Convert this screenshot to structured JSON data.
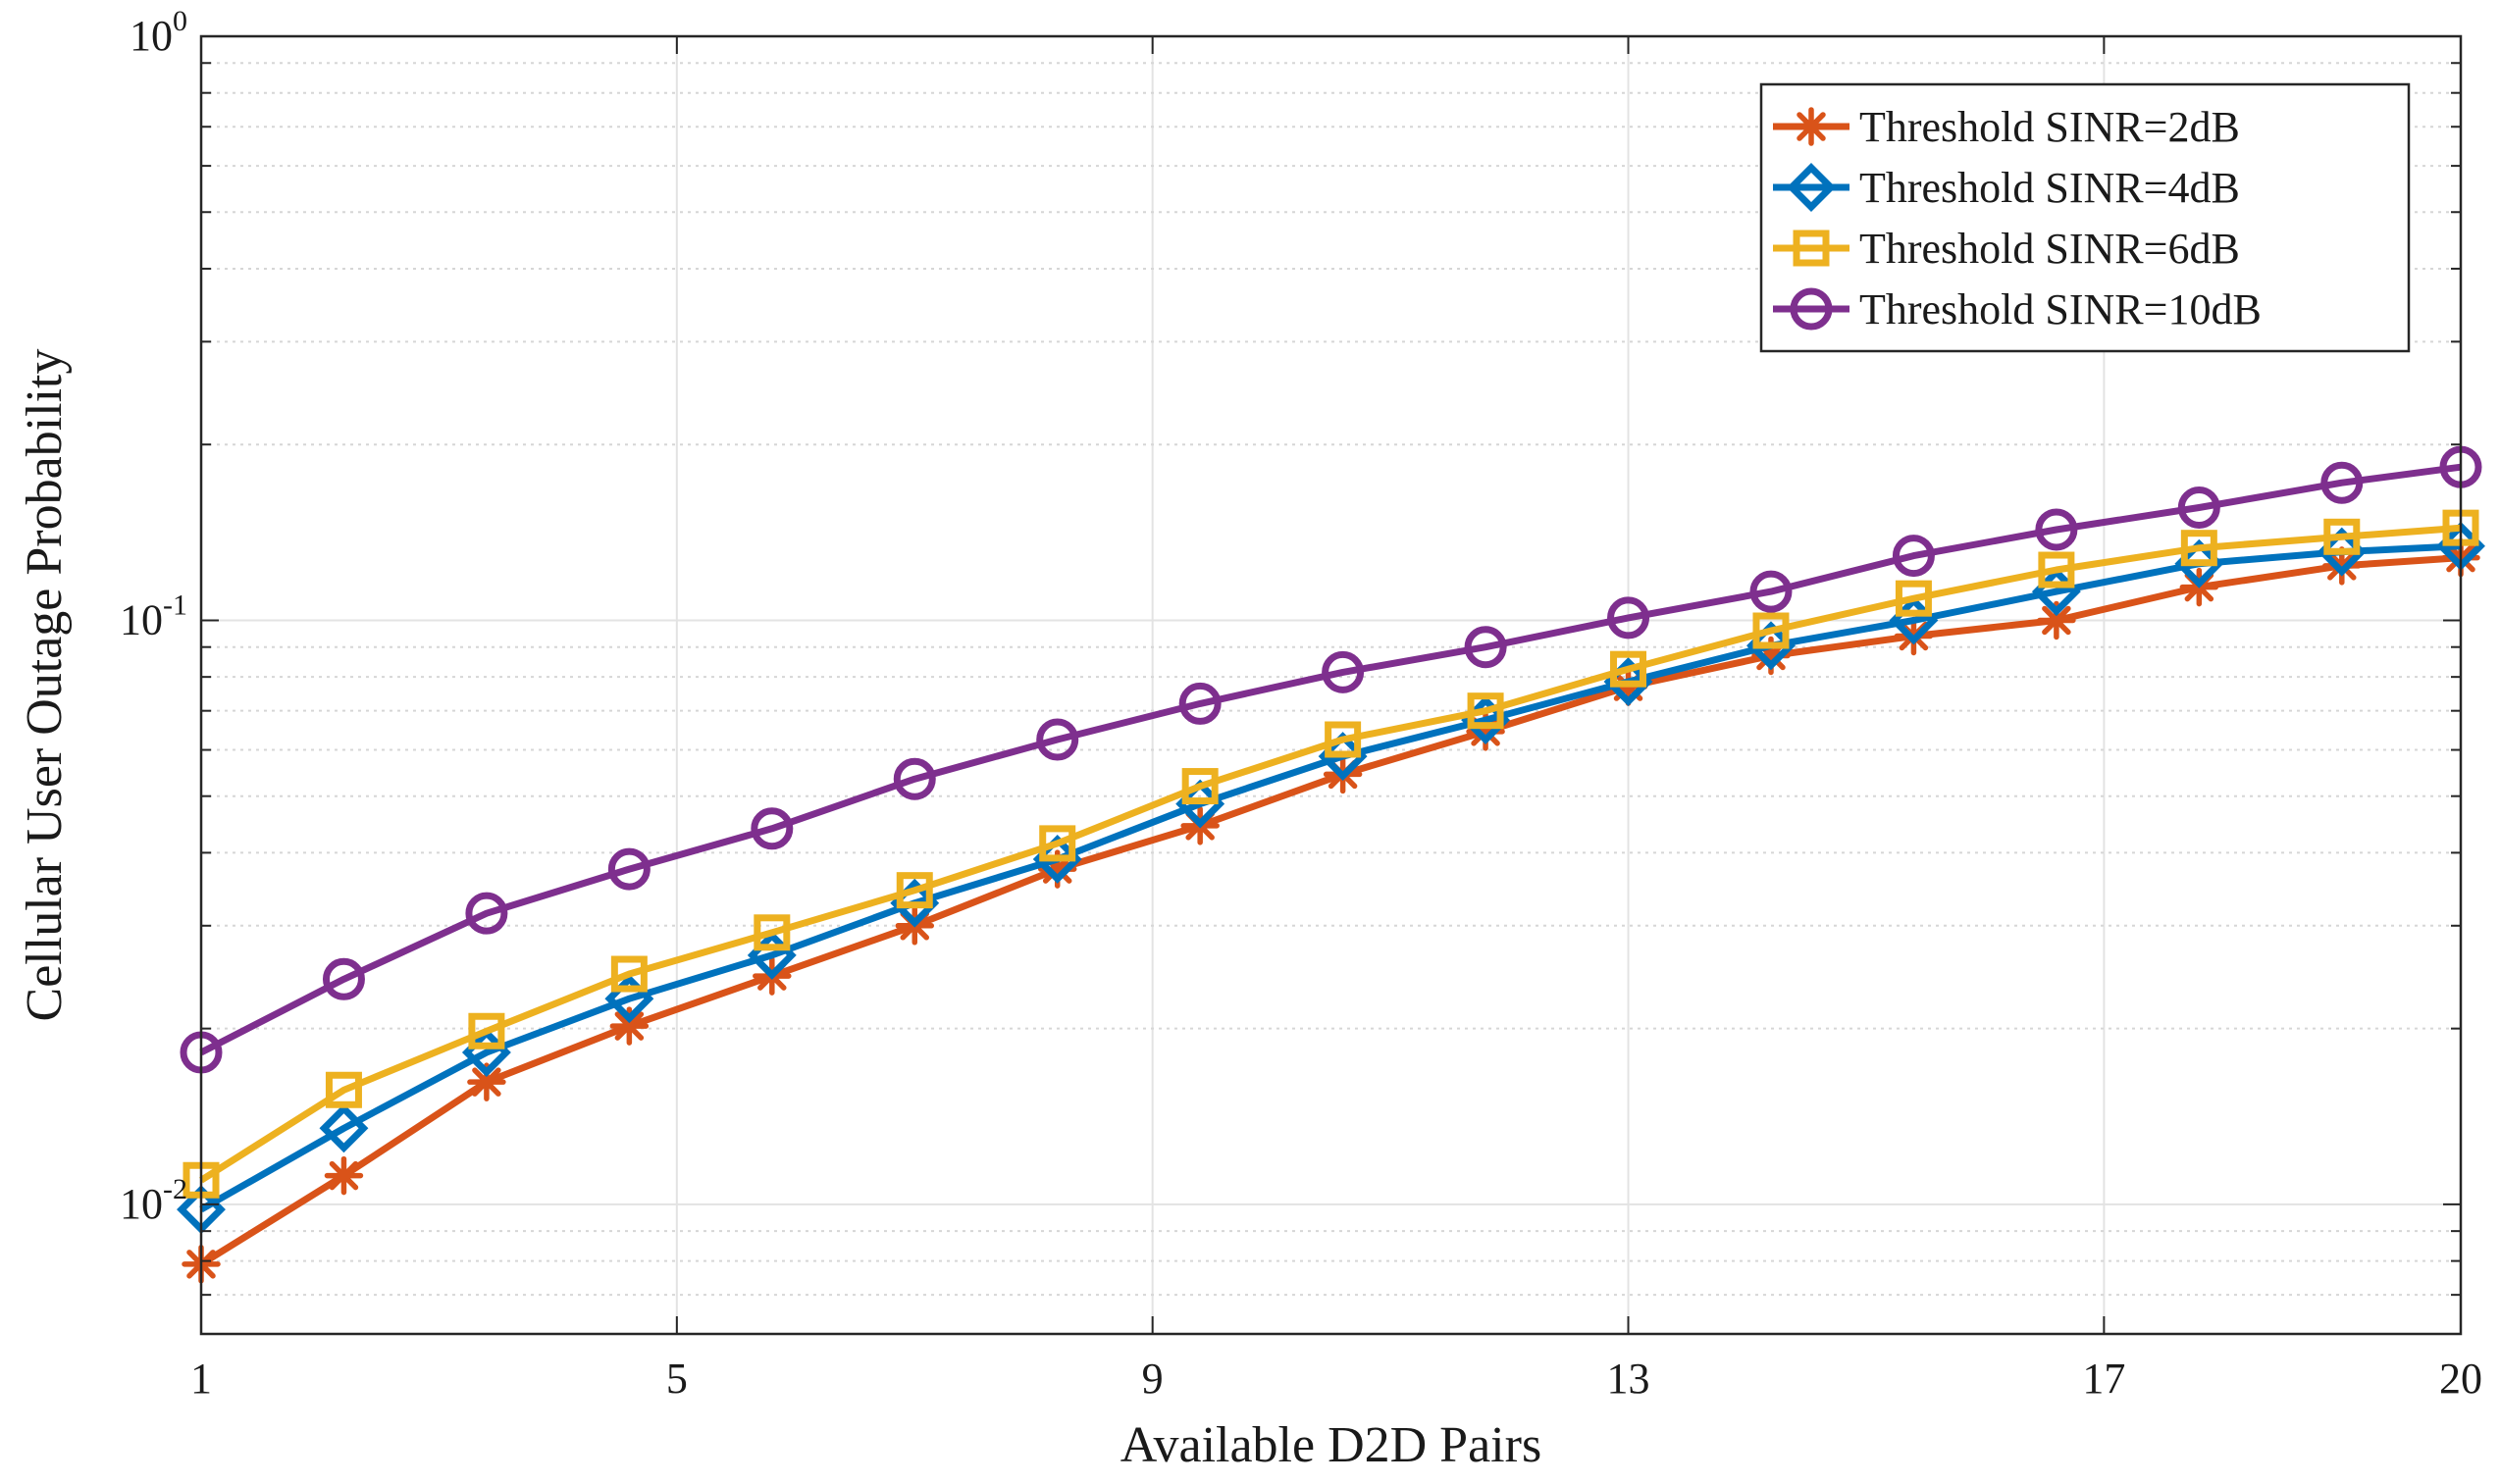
{
  "chart_data": {
    "type": "line",
    "y_scale": "log",
    "xlabel": "Available D2D Pairs",
    "ylabel": "Cellular User Outage Probability",
    "xlim": [
      1,
      20
    ],
    "ylim": [
      0.006,
      1
    ],
    "xticks": [
      1,
      5,
      9,
      13,
      17,
      20
    ],
    "yticks": [
      {
        "value": 0.01,
        "base": "10",
        "exp": "-2"
      },
      {
        "value": 0.1,
        "base": "10",
        "exp": "-1"
      },
      {
        "value": 1,
        "base": "10",
        "exp": "0"
      }
    ],
    "grid": true,
    "legend_position": "top-right",
    "x": [
      1,
      2.2,
      3.4,
      4.6,
      5.8,
      7,
      8.2,
      9.4,
      10.6,
      11.8,
      13,
      14.2,
      15.4,
      16.6,
      17.8,
      19,
      20
    ],
    "series": [
      {
        "name": "Threshold SINR=2dB",
        "color": "#D95319",
        "marker": "asterisk",
        "values": [
          0.0079,
          0.0112,
          0.0162,
          0.0202,
          0.0246,
          0.03,
          0.0375,
          0.0445,
          0.0545,
          0.0645,
          0.077,
          0.087,
          0.094,
          0.1,
          0.114,
          0.124,
          0.128
        ]
      },
      {
        "name": "Threshold SINR=4dB",
        "color": "#0072BD",
        "marker": "diamond",
        "values": [
          0.0098,
          0.0135,
          0.0182,
          0.0225,
          0.0267,
          0.0328,
          0.039,
          0.0485,
          0.0585,
          0.0675,
          0.0785,
          0.0905,
          0.1,
          0.112,
          0.125,
          0.131,
          0.134
        ]
      },
      {
        "name": "Threshold SINR=6dB",
        "color": "#EDB120",
        "marker": "square",
        "values": [
          0.011,
          0.0157,
          0.0198,
          0.0248,
          0.0292,
          0.0345,
          0.0415,
          0.052,
          0.0625,
          0.07,
          0.0825,
          0.096,
          0.109,
          0.122,
          0.133,
          0.139,
          0.144
        ]
      },
      {
        "name": "Threshold SINR=10dB",
        "color": "#7E2F8E",
        "marker": "circle",
        "values": [
          0.0182,
          0.0243,
          0.0315,
          0.0375,
          0.044,
          0.0535,
          0.0625,
          0.072,
          0.0815,
          0.09,
          0.101,
          0.112,
          0.129,
          0.143,
          0.156,
          0.172,
          0.183
        ]
      }
    ]
  }
}
